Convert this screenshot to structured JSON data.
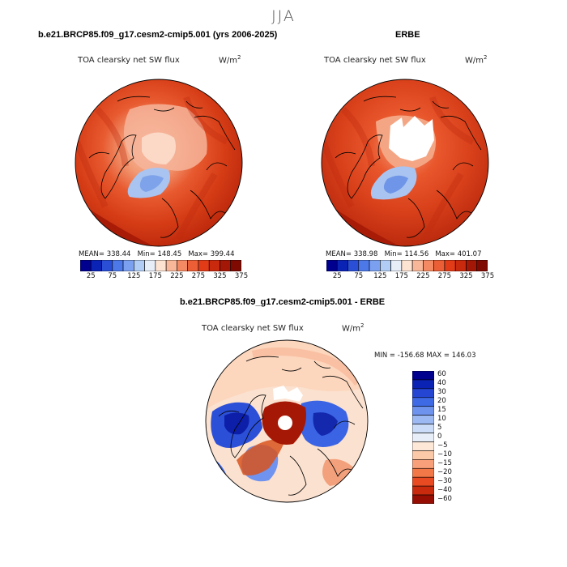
{
  "figure": {
    "season": "JJA",
    "panel_titles": {
      "model": "b.e21.BRCP85.f09_g17.cesm2-cmip5.001 (yrs 2006-2025)",
      "obs": "ERBE",
      "diff": "b.e21.BRCP85.f09_g17.cesm2-cmip5.001 - ERBE"
    },
    "variable": "TOA clearsky net SW flux",
    "units_base": "W/m",
    "units_exp": "2"
  },
  "stats": {
    "model": {
      "mean_label": "MEAN=",
      "mean": "338.44",
      "min_label": "Min=",
      "min": "148.45",
      "max_label": "Max=",
      "max": "399.44"
    },
    "obs": {
      "mean_label": "MEAN=",
      "mean": "338.98",
      "min_label": "Min=",
      "min": "114.56",
      "max_label": "Max=",
      "max": "401.07"
    },
    "diff": {
      "min_label": "MIN =",
      "min": "-156.68",
      "max_label": "MAX =",
      "max": "146.03"
    }
  },
  "colors": {
    "abs_scale": [
      "#00008f",
      "#0a23b4",
      "#2a4fd6",
      "#4c78e8",
      "#7aa0ef",
      "#b1cdf5",
      "#e8eef8",
      "#fde3d1",
      "#f8b798",
      "#f48a63",
      "#ec5e35",
      "#e13b17",
      "#c92a0d",
      "#a31706",
      "#7e0a02"
    ],
    "diff_scale": [
      "#00008f",
      "#0a23b4",
      "#2446d3",
      "#3e6ae6",
      "#6e93ee",
      "#9cb9f3",
      "#cadcf7",
      "#e8eef8",
      "#fde8d8",
      "#fbc8a8",
      "#f7a079",
      "#f27848",
      "#e94a21",
      "#c92a0d",
      "#960e03"
    ],
    "coast": "#000000",
    "land_mask": "#ffffff"
  },
  "chart_data": [
    {
      "type": "heatmap",
      "title": "b.e21.BRCP85.f09_g17.cesm2-cmip5.001 (yrs 2006-2025)",
      "projection": "north polar stereographic",
      "variable": "TOA clearsky net SW flux",
      "units": "W/m^2",
      "colorbar_levels": [
        25,
        50,
        75,
        100,
        125,
        150,
        175,
        200,
        225,
        250,
        275,
        300,
        325,
        350,
        375
      ],
      "colorbar_ticks": [
        "25",
        "75",
        "125",
        "175",
        "225",
        "275",
        "325",
        "375"
      ],
      "mean": 338.44,
      "min": 148.45,
      "max": 399.44
    },
    {
      "type": "heatmap",
      "title": "ERBE",
      "projection": "north polar stereographic",
      "variable": "TOA clearsky net SW flux",
      "units": "W/m^2",
      "colorbar_levels": [
        25,
        50,
        75,
        100,
        125,
        150,
        175,
        200,
        225,
        250,
        275,
        300,
        325,
        350,
        375
      ],
      "colorbar_ticks": [
        "25",
        "75",
        "125",
        "175",
        "225",
        "275",
        "325",
        "375"
      ],
      "mean": 338.98,
      "min": 114.56,
      "max": 401.07
    },
    {
      "type": "heatmap",
      "title": "b.e21.BRCP85.f09_g17.cesm2-cmip5.001 - ERBE",
      "projection": "north polar stereographic",
      "variable": "TOA clearsky net SW flux",
      "units": "W/m^2",
      "colorbar_levels": [
        60,
        40,
        30,
        20,
        15,
        10,
        5,
        0,
        -5,
        -10,
        -15,
        -20,
        -30,
        -40,
        -60
      ],
      "colorbar_ticks": [
        "60",
        "40",
        "30",
        "20",
        "15",
        "10",
        "5",
        "0",
        "−5",
        "−10",
        "−15",
        "−20",
        "−30",
        "−40",
        "−60"
      ],
      "min": -156.68,
      "max": 146.03
    }
  ]
}
